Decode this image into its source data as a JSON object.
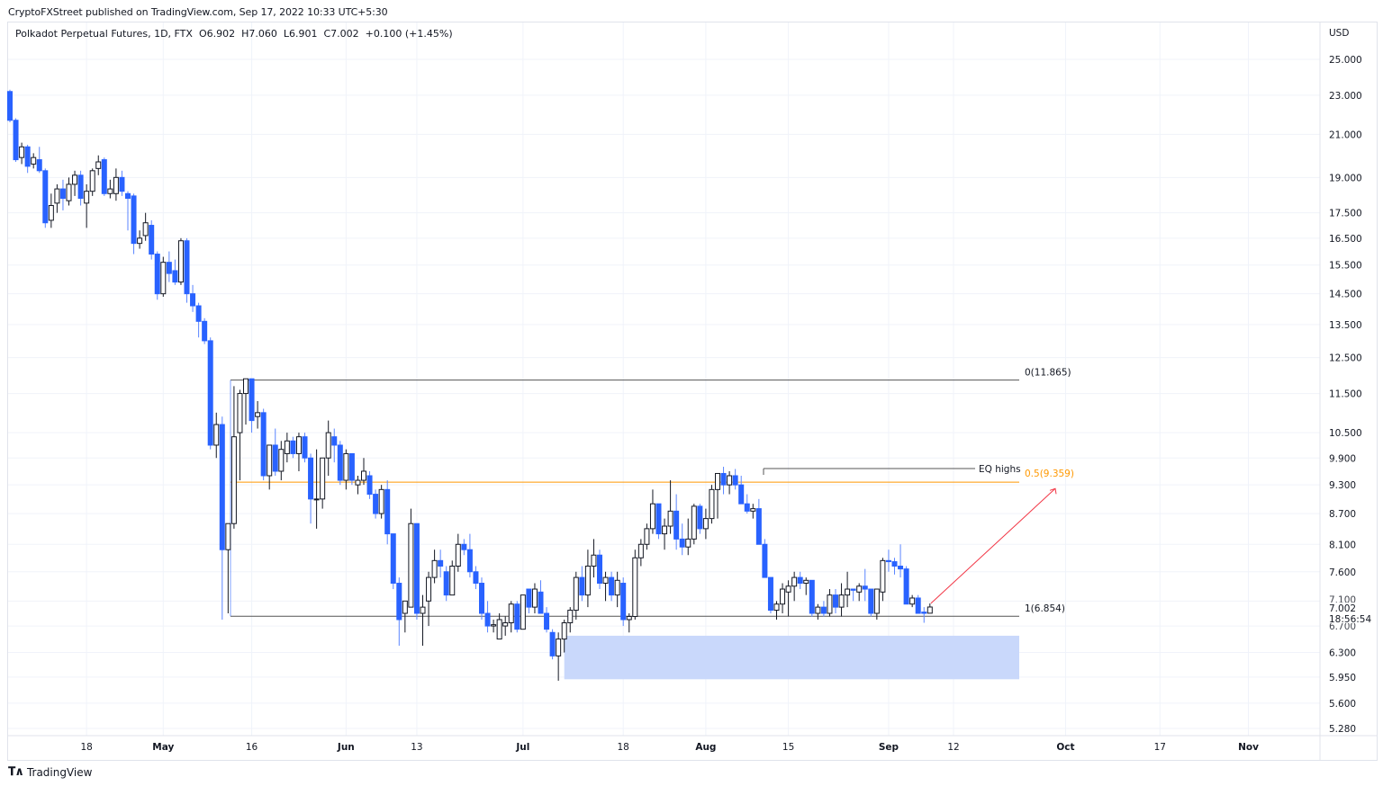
{
  "header": {
    "published": "CryptoFXStreet published on TradingView.com, Sep 17, 2022 10:33 UTC+5:30"
  },
  "legend": {
    "symbol": "Polkadot Perpetual Futures, 1D, FTX",
    "open": "O6.902",
    "high": "H7.060",
    "low": "L6.901",
    "close": "C7.002",
    "change": "+0.100 (+1.45%)"
  },
  "price_axis": {
    "currency": "USD",
    "last_price": "7.002",
    "countdown": "18:56:54",
    "ticks": [
      "25.000",
      "23.000",
      "21.000",
      "19.000",
      "17.500",
      "16.500",
      "15.500",
      "14.500",
      "13.500",
      "12.500",
      "11.500",
      "10.500",
      "9.900",
      "9.300",
      "8.700",
      "8.100",
      "7.600",
      "7.100",
      "6.700",
      "6.300",
      "5.950",
      "5.600",
      "5.280"
    ]
  },
  "footer": {
    "brand": "TradingView"
  },
  "colors": {
    "bull_border": "#131722",
    "bull_fill": "#ffffff",
    "bear": "#2962ff",
    "fib_mid": "#ff9800",
    "arrow": "#f23645",
    "zone": "#c9d8fb",
    "lines": "#555555"
  },
  "chart_data": {
    "type": "candlestick",
    "title": "Polkadot Perpetual Futures, 1D, FTX",
    "ylabel": "USD",
    "yscale": "log",
    "ylim": [
      5.1,
      27
    ],
    "x_ticks": [
      {
        "label": "18",
        "day": 13,
        "bold": false
      },
      {
        "label": "May",
        "day": 26,
        "bold": true
      },
      {
        "label": "16",
        "day": 41,
        "bold": false
      },
      {
        "label": "Jun",
        "day": 57,
        "bold": true
      },
      {
        "label": "13",
        "day": 69,
        "bold": false
      },
      {
        "label": "Jul",
        "day": 87,
        "bold": true
      },
      {
        "label": "18",
        "day": 104,
        "bold": false
      },
      {
        "label": "Aug",
        "day": 118,
        "bold": true
      },
      {
        "label": "15",
        "day": 132,
        "bold": false
      },
      {
        "label": "Sep",
        "day": 149,
        "bold": true
      },
      {
        "label": "12",
        "day": 160,
        "bold": false
      },
      {
        "label": "Oct",
        "day": 179,
        "bold": true
      },
      {
        "label": "17",
        "day": 195,
        "bold": false
      },
      {
        "label": "Nov",
        "day": 210,
        "bold": true
      }
    ],
    "first_date": "2022-04-05",
    "candles": [
      [
        23.2,
        23.3,
        21.6,
        21.7
      ],
      [
        21.7,
        21.8,
        19.7,
        19.8
      ],
      [
        19.9,
        20.6,
        19.6,
        20.4
      ],
      [
        20.4,
        20.5,
        19.2,
        19.5
      ],
      [
        19.6,
        20.1,
        19.4,
        19.9
      ],
      [
        19.8,
        20.4,
        19.2,
        19.3
      ],
      [
        19.3,
        19.4,
        16.9,
        17.1
      ],
      [
        17.2,
        18.3,
        16.9,
        17.8
      ],
      [
        17.9,
        18.7,
        17.5,
        18.5
      ],
      [
        18.5,
        18.9,
        17.6,
        18.1
      ],
      [
        18.0,
        19.0,
        17.8,
        18.7
      ],
      [
        18.7,
        19.3,
        18.2,
        19.1
      ],
      [
        19.1,
        19.3,
        17.8,
        18.1
      ],
      [
        17.9,
        18.7,
        16.9,
        18.4
      ],
      [
        18.4,
        19.4,
        18.2,
        19.3
      ],
      [
        19.4,
        20.0,
        19.1,
        19.7
      ],
      [
        19.8,
        19.9,
        18.2,
        18.3
      ],
      [
        18.3,
        18.9,
        18.1,
        18.5
      ],
      [
        18.3,
        19.4,
        18.0,
        19.0
      ],
      [
        19.0,
        19.3,
        18.2,
        18.4
      ],
      [
        18.3,
        18.4,
        16.8,
        18.1
      ],
      [
        18.2,
        18.3,
        15.9,
        16.3
      ],
      [
        16.3,
        16.8,
        16.1,
        16.5
      ],
      [
        16.6,
        17.5,
        16.4,
        17.1
      ],
      [
        17.0,
        17.2,
        15.7,
        15.9
      ],
      [
        15.9,
        16.0,
        14.3,
        14.5
      ],
      [
        14.5,
        15.8,
        14.4,
        15.6
      ],
      [
        15.6,
        16.0,
        14.9,
        15.2
      ],
      [
        15.3,
        15.7,
        14.8,
        14.9
      ],
      [
        14.9,
        16.5,
        14.8,
        16.4
      ],
      [
        16.4,
        16.5,
        14.2,
        14.5
      ],
      [
        14.5,
        14.8,
        13.9,
        14.1
      ],
      [
        14.1,
        14.2,
        13.1,
        13.6
      ],
      [
        13.6,
        13.7,
        12.9,
        13.0
      ],
      [
        13.0,
        13.1,
        10.1,
        10.2
      ],
      [
        10.2,
        11.0,
        9.9,
        10.7
      ],
      [
        10.7,
        10.9,
        6.8,
        8.0
      ],
      [
        8.0,
        8.3,
        6.9,
        8.5
      ],
      [
        8.5,
        11.7,
        8.4,
        10.4
      ],
      [
        10.5,
        11.6,
        9.4,
        11.5
      ],
      [
        11.5,
        11.9,
        10.7,
        11.9
      ],
      [
        11.9,
        11.9,
        10.5,
        10.8
      ],
      [
        10.9,
        11.3,
        10.6,
        11.0
      ],
      [
        11.0,
        11.1,
        9.4,
        9.5
      ],
      [
        9.5,
        10.1,
        9.2,
        10.2
      ],
      [
        10.2,
        10.6,
        9.5,
        9.6
      ],
      [
        9.6,
        10.3,
        9.4,
        10.1
      ],
      [
        10.0,
        10.5,
        9.8,
        10.3
      ],
      [
        10.3,
        10.4,
        9.9,
        10.0
      ],
      [
        10.0,
        10.5,
        9.6,
        10.4
      ],
      [
        10.4,
        10.5,
        9.8,
        9.9
      ],
      [
        9.9,
        10.0,
        8.5,
        9.0
      ],
      [
        9.0,
        10.1,
        8.4,
        9.0
      ],
      [
        9.0,
        9.9,
        8.8,
        9.9
      ],
      [
        9.9,
        10.8,
        9.5,
        10.5
      ],
      [
        10.4,
        10.6,
        9.8,
        10.2
      ],
      [
        10.2,
        10.3,
        9.3,
        9.4
      ],
      [
        9.4,
        10.1,
        9.2,
        10.0
      ],
      [
        10.0,
        10.0,
        9.3,
        9.4
      ],
      [
        9.3,
        9.5,
        9.1,
        9.4
      ],
      [
        9.4,
        9.9,
        9.3,
        9.6
      ],
      [
        9.5,
        9.6,
        9.0,
        9.1
      ],
      [
        9.1,
        9.2,
        8.6,
        8.7
      ],
      [
        8.7,
        9.3,
        8.6,
        9.2
      ],
      [
        9.2,
        9.4,
        8.1,
        8.3
      ],
      [
        8.3,
        8.3,
        7.3,
        7.4
      ],
      [
        7.4,
        7.5,
        6.4,
        6.8
      ],
      [
        6.9,
        7.0,
        6.6,
        7.1
      ],
      [
        7.0,
        8.8,
        7.0,
        8.5
      ],
      [
        8.5,
        8.5,
        6.8,
        6.9
      ],
      [
        6.9,
        7.2,
        6.4,
        7.0
      ],
      [
        7.1,
        7.6,
        6.7,
        7.5
      ],
      [
        7.5,
        8.0,
        7.4,
        7.8
      ],
      [
        7.8,
        8.0,
        7.5,
        7.7
      ],
      [
        7.6,
        7.7,
        7.1,
        7.2
      ],
      [
        7.2,
        7.8,
        7.2,
        7.7
      ],
      [
        7.7,
        8.3,
        7.6,
        8.1
      ],
      [
        8.1,
        8.2,
        7.9,
        8.0
      ],
      [
        8.0,
        8.3,
        7.5,
        7.6
      ],
      [
        7.6,
        7.7,
        7.3,
        7.4
      ],
      [
        7.4,
        7.5,
        6.8,
        6.9
      ],
      [
        6.9,
        7.1,
        6.6,
        6.7
      ],
      [
        6.7,
        6.8,
        6.6,
        6.72
      ],
      [
        6.5,
        6.9,
        6.5,
        6.8
      ],
      [
        6.7,
        6.85,
        6.55,
        6.75
      ],
      [
        6.75,
        7.1,
        6.6,
        7.05
      ],
      [
        7.05,
        7.1,
        6.6,
        6.65
      ],
      [
        6.65,
        7.2,
        6.65,
        7.2
      ],
      [
        7.3,
        7.3,
        6.9,
        7.0
      ],
      [
        7.0,
        7.4,
        6.9,
        7.3
      ],
      [
        7.25,
        7.45,
        6.95,
        6.9
      ],
      [
        6.9,
        7.0,
        6.6,
        6.65
      ],
      [
        6.6,
        6.65,
        6.2,
        6.25
      ],
      [
        6.25,
        6.6,
        5.9,
        6.5
      ],
      [
        6.5,
        6.8,
        6.3,
        6.75
      ],
      [
        6.75,
        7.0,
        6.6,
        6.95
      ],
      [
        6.95,
        7.6,
        6.8,
        7.5
      ],
      [
        7.5,
        7.7,
        7.1,
        7.2
      ],
      [
        7.2,
        8.0,
        7.0,
        7.7
      ],
      [
        7.7,
        8.2,
        7.5,
        7.9
      ],
      [
        7.9,
        8.0,
        7.3,
        7.4
      ],
      [
        7.4,
        7.6,
        7.1,
        7.5
      ],
      [
        7.5,
        7.6,
        7.1,
        7.2
      ],
      [
        7.2,
        7.6,
        7.0,
        7.45
      ],
      [
        7.4,
        7.5,
        6.7,
        6.8
      ],
      [
        6.8,
        6.9,
        6.6,
        6.85
      ],
      [
        6.85,
        8.0,
        6.8,
        7.85
      ],
      [
        7.85,
        8.2,
        7.7,
        8.1
      ],
      [
        8.1,
        8.5,
        8.0,
        8.4
      ],
      [
        8.4,
        9.2,
        8.3,
        8.9
      ],
      [
        8.9,
        8.9,
        8.2,
        8.3
      ],
      [
        8.3,
        8.6,
        8.0,
        8.45
      ],
      [
        8.45,
        9.4,
        8.3,
        8.75
      ],
      [
        8.75,
        9.1,
        8.0,
        8.2
      ],
      [
        8.2,
        8.5,
        7.9,
        8.05
      ],
      [
        8.05,
        8.6,
        7.9,
        8.2
      ],
      [
        8.2,
        8.9,
        8.1,
        8.85
      ],
      [
        8.85,
        8.9,
        8.3,
        8.4
      ],
      [
        8.4,
        8.8,
        8.2,
        8.6
      ],
      [
        8.6,
        9.3,
        8.5,
        9.2
      ],
      [
        9.2,
        9.55,
        8.6,
        9.55
      ],
      [
        9.55,
        9.7,
        9.1,
        9.3
      ],
      [
        9.3,
        9.6,
        9.1,
        9.5
      ],
      [
        9.5,
        9.65,
        9.2,
        9.3
      ],
      [
        9.3,
        9.5,
        8.9,
        8.9
      ],
      [
        8.9,
        9.1,
        8.7,
        8.75
      ],
      [
        8.75,
        8.9,
        8.6,
        8.8
      ],
      [
        8.8,
        9.0,
        8.1,
        8.1
      ],
      [
        8.1,
        8.2,
        7.5,
        7.5
      ],
      [
        7.5,
        7.5,
        6.9,
        6.95
      ],
      [
        6.95,
        7.1,
        6.8,
        7.05
      ],
      [
        7.05,
        7.4,
        6.9,
        7.3
      ],
      [
        7.25,
        7.45,
        6.85,
        7.35
      ],
      [
        7.35,
        7.6,
        7.1,
        7.5
      ],
      [
        7.5,
        7.6,
        7.3,
        7.4
      ],
      [
        7.4,
        7.5,
        7.2,
        7.45
      ],
      [
        7.45,
        7.45,
        6.85,
        6.9
      ],
      [
        6.9,
        7.05,
        6.8,
        7.0
      ],
      [
        7.0,
        7.1,
        6.85,
        6.9
      ],
      [
        6.9,
        7.3,
        6.85,
        7.2
      ],
      [
        7.2,
        7.3,
        6.9,
        7.0
      ],
      [
        7.0,
        7.4,
        6.85,
        7.2
      ],
      [
        7.2,
        7.6,
        7.0,
        7.3
      ],
      [
        7.3,
        7.3,
        7.1,
        7.28
      ],
      [
        7.25,
        7.4,
        7.1,
        7.35
      ],
      [
        7.35,
        7.65,
        7.1,
        7.3
      ],
      [
        7.3,
        7.3,
        6.85,
        6.9
      ],
      [
        6.9,
        7.3,
        6.8,
        7.3
      ],
      [
        7.25,
        7.85,
        7.1,
        7.8
      ],
      [
        7.8,
        8.0,
        7.6,
        7.78
      ],
      [
        7.78,
        7.85,
        7.55,
        7.7
      ],
      [
        7.7,
        8.1,
        7.5,
        7.65
      ],
      [
        7.65,
        7.7,
        7.05,
        7.05
      ],
      [
        7.05,
        7.2,
        7.0,
        7.15
      ],
      [
        7.15,
        7.2,
        6.9,
        6.9
      ],
      [
        6.92,
        7.0,
        6.75,
        6.9
      ],
      [
        6.902,
        7.06,
        6.901,
        7.002
      ]
    ],
    "annotations": {
      "fib_0": {
        "label": "0(11.865)",
        "price": 11.865
      },
      "fib_05": {
        "label": "0.5(9.359)",
        "price": 9.359
      },
      "fib_1": {
        "label": "1(6.854)",
        "price": 6.854
      },
      "eq_highs": {
        "label": "EQ highs",
        "price": 9.65
      },
      "demand_zone": {
        "top": 6.55,
        "bottom": 5.92
      },
      "arrow": {
        "from_price": 7.06,
        "to_price": 9.22
      }
    }
  }
}
